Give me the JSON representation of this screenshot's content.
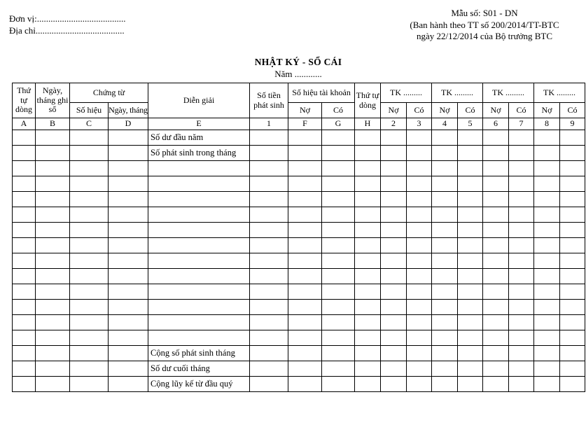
{
  "page_header": {
    "unit_line": "Đơn vị:.......................................",
    "address_line": "Địa chỉ.......................................",
    "form_block": {
      "line1": "Mẫu số: S01 - DN",
      "line2": "(Ban hành theo TT số 200/2014/TT-BTC",
      "line3": "ngày 22/12/2014 của Bộ trưởng BTC"
    }
  },
  "title": {
    "main": "NHẬT KÝ - SỔ CÁI",
    "year_line": "Năm ............"
  },
  "table": {
    "headers": {
      "row_order": "Thứ tự dòng",
      "entry_date": "Ngày, tháng ghi sổ",
      "voucher": "Chứng từ",
      "voucher_number": "Số hiệu",
      "voucher_date": "Ngày, tháng",
      "description": "Diễn giải",
      "amount": "Số tiền phát sinh",
      "account_number": "Số hiệu tài khoản",
      "debit": "Nợ",
      "credit": "Có",
      "row_order_2": "Thứ tự dòng",
      "tk_label": "TK ........."
    },
    "column_codes": [
      "A",
      "B",
      "C",
      "D",
      "E",
      "1",
      "F",
      "G",
      "H",
      "2",
      "3",
      "4",
      "5",
      "6",
      "7",
      "8",
      "9"
    ],
    "row_descriptions": [
      "Số dư đầu năm",
      "Số phát sinh trong tháng",
      "",
      "",
      "",
      "",
      "",
      "",
      "",
      "",
      "",
      "",
      "",
      "",
      "Cộng số phát sinh tháng",
      "Số dư cuối tháng",
      "Cộng lũy kế từ đầu quý"
    ]
  }
}
